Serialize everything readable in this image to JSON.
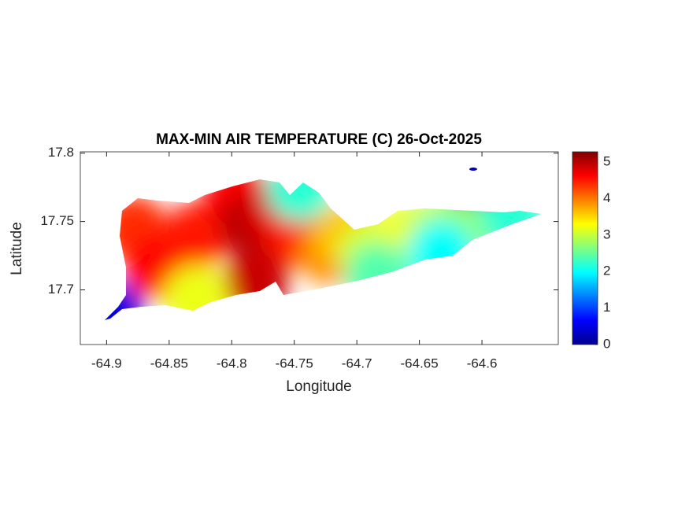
{
  "chart_data": {
    "type": "contour-map",
    "title": "MAX-MIN AIR TEMPERATURE (C) 26-Oct-2025",
    "x_label": "Longitude",
    "y_label": "Latitude",
    "xlim": [
      -64.921,
      -64.539
    ],
    "ylim": [
      17.66,
      17.801
    ],
    "xticks": [
      -64.9,
      -64.85,
      -64.8,
      -64.75,
      -64.7,
      -64.65,
      -64.6
    ],
    "yticks": [
      17.7,
      17.75,
      17.8
    ],
    "clim": [
      0,
      5.28
    ],
    "cticks": [
      0,
      1,
      2,
      3,
      4,
      5
    ],
    "colormap": "jet",
    "points": [
      {
        "lon": -64.878,
        "lat": 17.745,
        "value": 4.4
      },
      {
        "lon": -64.859,
        "lat": 17.717,
        "value": 4.6
      },
      {
        "lon": -64.828,
        "lat": 17.74,
        "value": 4.5
      },
      {
        "lon": -64.796,
        "lat": 17.768,
        "value": 4.6
      },
      {
        "lon": -64.784,
        "lat": 17.748,
        "value": 5.0
      },
      {
        "lon": -64.765,
        "lat": 17.757,
        "value": 4.8
      },
      {
        "lon": -64.746,
        "lat": 17.74,
        "value": 4.5
      },
      {
        "lon": -64.781,
        "lat": 17.705,
        "value": 4.9
      },
      {
        "lon": -64.721,
        "lat": 17.728,
        "value": 3.9
      },
      {
        "lon": -64.708,
        "lat": 17.74,
        "value": 3.6
      },
      {
        "lon": -64.689,
        "lat": 17.728,
        "value": 3.1
      },
      {
        "lon": -64.658,
        "lat": 17.74,
        "value": 3.2
      },
      {
        "lon": -64.633,
        "lat": 17.745,
        "value": 3.0
      },
      {
        "lon": -64.608,
        "lat": 17.748,
        "value": 2.8
      },
      {
        "lon": -64.576,
        "lat": 17.754,
        "value": 2.2
      },
      {
        "lon": -64.633,
        "lat": 17.728,
        "value": 2.0
      },
      {
        "lon": -64.683,
        "lat": 17.711,
        "value": 2.4
      },
      {
        "lon": -64.828,
        "lat": 17.694,
        "value": 3.2
      },
      {
        "lon": -64.746,
        "lat": 17.774,
        "value": 2.2
      },
      {
        "lon": -64.897,
        "lat": 17.682,
        "value": 0.5
      },
      {
        "lon": -64.607,
        "lat": 17.789,
        "value": 0.3
      }
    ]
  }
}
